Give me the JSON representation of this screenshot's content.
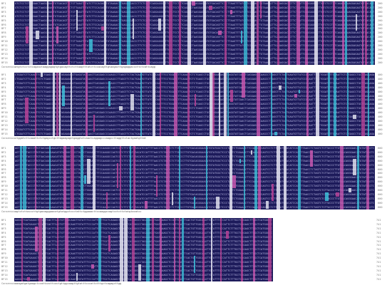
{
  "alignment": {
    "sequence_names": [
      "BF1",
      "BF2",
      "BF3",
      "BF4",
      "BF5",
      "BF6",
      "BF7",
      "BF8",
      "BF9",
      "BF10",
      "BF11",
      "BF12",
      "BF13",
      "BF14",
      "BF15"
    ],
    "consensus_label": "Consensus",
    "blocks": [
      {
        "end_position": "200",
        "sample_residues": "GTCTCCTCTCAGAACTAAGGAGAGTGTGACAGTTCTCTTAAGTTTATCTTCCACAGTTGTAAGACTTGAGAGGACCCTTCTCATTCAGGAGGGCTT",
        "consensus": "atgtctcctctcagaactaaggagagtgtgacagttctcttaagtttatcttccacagttgtaagacttgagaggacccttctcattcagg"
      },
      {
        "end_position": "400",
        "sample_residues": "CTGGATCTTCAAATTCTCTGAGCCTGCTTAGAAGAGCTGAGGTATCAACTCAGGAGCCCAAGCCTTAGGTTCTACTGAATGTTATCCCCAATTTC",
        "consensus": "ctggatcttcaaattctctgagcctgcttagaagagctgaggtatcaactcaggagcccaagccttaggttctactgaatgttat"
      },
      {
        "end_position": "600",
        "sample_residues": "AGTCTCTTACCCTTGTGACAGGGAACATGTATGGCTCCCTATTCTGGAAACTTCCAAGGCCAGTCCTCTTCTATGTACATCCATTTTAACCTCT",
        "consensus": "agtctcttacccttgtgacagggaacatgtatggctccctattctggaaacttccaaggccagtcctcttctatgtacatcc"
      },
      {
        "end_position": "741",
        "sample_residues": "AAAGATGATGAAGCTCCATTCACTTCACTGTTGGCAAGTTGTATTTCCCATTCTTTGCTCAGAGCTTGGCTCATGGGCCTAG",
        "consensus": "aaagatgatgaagctccattcacttcactgttggcaagttgtatttcccattctttgctcagagcttgg"
      }
    ]
  },
  "colors": {
    "background": "#1c1a5a",
    "highlight_pink": "#c0449a",
    "highlight_cyan": "#3ec8e0",
    "highlight_white": "#e8e8f4",
    "highlight_magenta": "#d25ab4"
  }
}
